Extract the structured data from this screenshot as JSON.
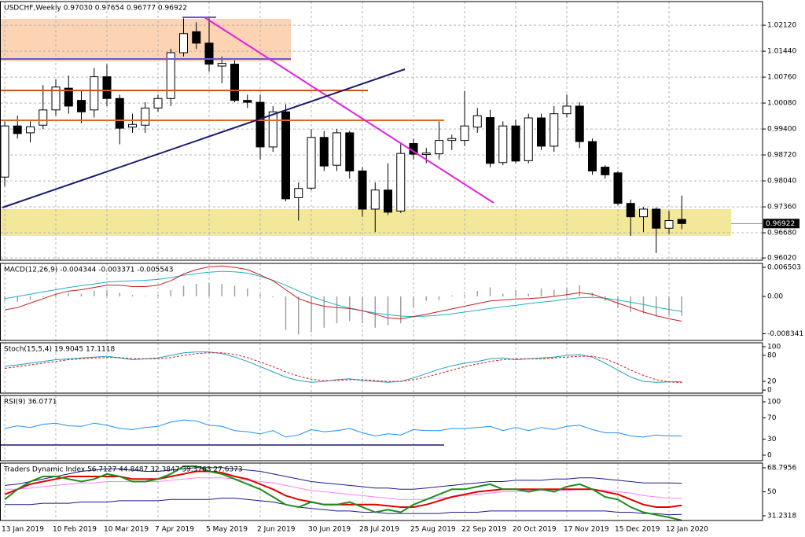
{
  "chart_data": [
    {
      "type": "candlestick",
      "title": "USDCHF,Weekly  0.97030 0.97654 0.96777 0.96922",
      "price_label": "0.96922",
      "up_color": "#ffffff",
      "down_color": "#000000",
      "grid": true,
      "categories": [
        "13 Jan 2019",
        null,
        null,
        null,
        "10 Feb 2019",
        null,
        null,
        null,
        "10 Mar 2019",
        null,
        null,
        null,
        "7 Apr 2019",
        null,
        null,
        null,
        "5 May 2019",
        null,
        null,
        null,
        "2 Jun 2019",
        null,
        null,
        null,
        "30 Jun 2019",
        null,
        null,
        null,
        "28 Jul 2019",
        null,
        null,
        null,
        "25 Aug 2019",
        null,
        null,
        null,
        "22 Sep 2019",
        null,
        null,
        null,
        "20 Oct 2019",
        null,
        null,
        null,
        "17 Nov 2019",
        null,
        null,
        null,
        "15 Dec 2019",
        null,
        null,
        null,
        "12 Jan 2020",
        null
      ],
      "open": [
        0.9814,
        0.9948,
        0.993,
        0.995,
        0.999,
        1.0047,
        1.0015,
        0.999,
        1.0077,
        1.002,
        0.9945,
        0.995,
        0.9995,
        1.002,
        1.014,
        1.0195,
        1.0165,
        1.0105,
        1.011,
        1.0015,
        1.001,
        0.9893,
        0.9985,
        0.976,
        0.9785,
        0.9918,
        0.9845,
        0.993,
        0.983,
        0.973,
        0.978,
        0.9725,
        0.9902,
        0.9873,
        0.9875,
        0.991,
        0.991,
        0.9945,
        0.997,
        0.9852,
        0.9948,
        0.9857,
        0.9969,
        0.9895,
        0.998,
        1.0,
        0.9907,
        0.984,
        0.9825,
        0.9745,
        0.971,
        0.973,
        0.968,
        0.9703
      ],
      "high": [
        0.996,
        0.9975,
        0.996,
        1.0055,
        1.007,
        1.008,
        1.004,
        1.01,
        1.011,
        1.003,
        0.998,
        1.001,
        1.003,
        1.015,
        1.023,
        1.022,
        1.0235,
        1.013,
        1.012,
        1.003,
        1.003,
        1.0,
        1.0005,
        0.98,
        0.994,
        0.9935,
        0.994,
        0.9935,
        0.984,
        0.98,
        0.985,
        0.99,
        0.9915,
        0.989,
        0.996,
        0.9925,
        1.004,
        0.9995,
        0.999,
        0.996,
        0.9965,
        0.998,
        0.998,
        1.0,
        1.003,
        1.001,
        0.9915,
        0.9845,
        0.983,
        0.9755,
        0.9735,
        0.9735,
        0.9725,
        0.97654
      ],
      "low": [
        0.979,
        0.9915,
        0.9905,
        0.994,
        0.9975,
        0.998,
        0.9955,
        0.997,
        1.0,
        0.99,
        0.993,
        0.993,
        0.9985,
        1.0,
        1.013,
        1.015,
        1.009,
        1.006,
        1.001,
        0.9995,
        0.986,
        0.988,
        0.975,
        0.97,
        0.978,
        0.983,
        0.983,
        0.981,
        0.971,
        0.967,
        0.9715,
        0.972,
        0.986,
        0.985,
        0.986,
        0.9885,
        0.9895,
        0.993,
        0.984,
        0.9845,
        0.985,
        0.985,
        0.9885,
        0.988,
        0.997,
        0.989,
        0.982,
        0.981,
        0.974,
        0.966,
        0.967,
        0.9615,
        0.9665,
        0.96777
      ],
      "close": [
        0.9948,
        0.9928,
        0.9946,
        0.999,
        1.005,
        1.0,
        0.9985,
        1.0077,
        1.002,
        0.9942,
        0.9952,
        0.9995,
        1.002,
        1.014,
        1.019,
        1.0165,
        1.011,
        1.0112,
        1.0015,
        1.001,
        0.9893,
        0.9985,
        0.9757,
        0.9784,
        0.9918,
        0.9843,
        0.993,
        0.983,
        0.973,
        0.978,
        0.9722,
        0.9876,
        0.9874,
        0.9877,
        0.991,
        0.9915,
        0.9948,
        0.9975,
        0.985,
        0.9948,
        0.9856,
        0.9969,
        0.9895,
        0.998,
        1.0,
        0.9907,
        0.983,
        0.982,
        0.9745,
        0.971,
        0.973,
        0.968,
        0.97,
        0.96922
      ],
      "ylim": [
        0.9596,
        1.0274
      ],
      "yticks": [
        {
          "value": 1.0212,
          "label": "1.02120"
        },
        {
          "value": 1.0144,
          "label": "1.01440"
        },
        {
          "value": 1.0076,
          "label": "1.00760"
        },
        {
          "value": 1.0008,
          "label": "1.00080"
        },
        {
          "value": 0.994,
          "label": "0.99400"
        },
        {
          "value": 0.9872,
          "label": "0.98720"
        },
        {
          "value": 0.9804,
          "label": "0.98040"
        },
        {
          "value": 0.9736,
          "label": "0.97360"
        },
        {
          "value": 0.9668,
          "label": "0.96680"
        },
        {
          "value": 0.9602,
          "label": "0.96020"
        }
      ]
    },
    {
      "type": "macd",
      "title": "MACD(12,26,9) -0.004344 -0.003371 -0.005543",
      "grid": false,
      "ylim": [
        -0.00984,
        0.00738
      ],
      "yticks": [
        0.006503,
        {
          "value": 0,
          "label": "0.00"
        },
        -0.008341
      ],
      "series": [
        {
          "style": "histogram",
          "color": "#a0a0a0",
          "values": [
            -0.001,
            -0.0012,
            -0.0008,
            -0.0002,
            0.0005,
            0.0008,
            0.0006,
            0.0012,
            0.0014,
            0.0008,
            0.0003,
            0.0001,
            0.0004,
            0.0014,
            0.0024,
            0.0028,
            0.003,
            0.0028,
            0.0024,
            0.0018,
            0.0005,
            -0.0002,
            -0.0075,
            -0.0085,
            -0.008,
            -0.007,
            -0.006,
            -0.0055,
            -0.006,
            -0.007,
            -0.0065,
            -0.006,
            -0.0025,
            -0.001,
            -0.0008,
            0.0002,
            0.0004,
            0.0012,
            0.002,
            0.0006,
            0.0014,
            0.0006,
            0.0018,
            0.0015,
            0.002,
            0.0025,
            0.0008,
            -0.001,
            -0.0025,
            -0.0035,
            -0.0038,
            -0.0045,
            -0.0042,
            -0.004344
          ]
        },
        {
          "style": "line",
          "color": "#1fb0c8",
          "values": [
            -0.0005,
            0,
            0.0005,
            0.001,
            0.0015,
            0.002,
            0.0024,
            0.0028,
            0.0032,
            0.0034,
            0.0035,
            0.0036,
            0.0038,
            0.0042,
            0.0047,
            0.0051,
            0.0054,
            0.0056,
            0.0055,
            0.0052,
            0.0045,
            0.0036,
            0.0025,
            0.0012,
            0,
            -0.001,
            -0.0019,
            -0.0026,
            -0.0032,
            -0.0037,
            -0.0041,
            -0.0044,
            -0.0045,
            -0.0044,
            -0.0042,
            -0.0039,
            -0.0035,
            -0.0031,
            -0.0027,
            -0.0023,
            -0.002,
            -0.0016,
            -0.0013,
            -0.001,
            -0.0006,
            -0.0003,
            -0.0002,
            -0.0004,
            -0.0008,
            -0.0013,
            -0.0018,
            -0.0024,
            -0.0029,
            -0.003371
          ]
        },
        {
          "style": "line",
          "color": "#c81e1e",
          "values": [
            -0.003,
            -0.0025,
            -0.0015,
            -0.0005,
            0.0005,
            0.0012,
            0.0015,
            0.002,
            0.0025,
            0.0025,
            0.0022,
            0.0022,
            0.0025,
            0.0035,
            0.005,
            0.006,
            0.0066,
            0.0068,
            0.0065,
            0.006,
            0.0048,
            0.0035,
            0.0015,
            -0.0005,
            -0.0015,
            -0.0022,
            -0.0025,
            -0.0027,
            -0.0032,
            -0.004,
            -0.0048,
            -0.005,
            -0.0045,
            -0.004,
            -0.0034,
            -0.0028,
            -0.0022,
            -0.0016,
            -0.001,
            -0.0008,
            -0.0006,
            -0.0005,
            -0.0003,
            0,
            0.0004,
            0.0008,
            0.0005,
            -0.0005,
            -0.0015,
            -0.0025,
            -0.0035,
            -0.0043,
            -0.005,
            -0.005543
          ]
        }
      ]
    },
    {
      "type": "line",
      "title": "Stoch(15,5,4) 19.9045 17.1118",
      "grid": false,
      "ylim": [
        -7,
        109
      ],
      "yticks": [
        100,
        80,
        20,
        0
      ],
      "series": [
        {
          "style": "line",
          "color": "#1fa0c0",
          "values": [
            55,
            58,
            62,
            66,
            70,
            72,
            74,
            76,
            78,
            74,
            70,
            72,
            74,
            80,
            86,
            88,
            88,
            84,
            76,
            66,
            54,
            42,
            30,
            22,
            18,
            20,
            24,
            26,
            22,
            20,
            18,
            20,
            28,
            38,
            48,
            56,
            62,
            66,
            72,
            74,
            70,
            72,
            74,
            76,
            80,
            82,
            76,
            62,
            46,
            30,
            20,
            18,
            19,
            19.9045
          ]
        },
        {
          "style": "dashed",
          "color": "#d02020",
          "values": [
            50,
            54,
            58,
            62,
            66,
            70,
            72,
            74,
            75,
            75,
            73,
            72,
            72,
            75,
            80,
            84,
            86,
            86,
            82,
            75,
            65,
            54,
            42,
            32,
            25,
            22,
            22,
            24,
            24,
            22,
            20,
            20,
            24,
            30,
            38,
            46,
            54,
            60,
            66,
            70,
            72,
            72,
            72,
            74,
            76,
            78,
            78,
            72,
            60,
            46,
            34,
            24,
            19,
            17.1118
          ]
        }
      ]
    },
    {
      "type": "line",
      "title": "RSI(9) 36.0771",
      "grid": false,
      "ylim": [
        -10.3,
        111.8
      ],
      "yticks": [
        100,
        70,
        30,
        0
      ],
      "series": [
        {
          "style": "line",
          "color": "#1e90ff",
          "values": [
            50,
            55,
            52,
            58,
            60,
            55,
            54,
            60,
            56,
            50,
            48,
            52,
            54,
            62,
            66,
            64,
            56,
            54,
            46,
            44,
            40,
            46,
            34,
            38,
            48,
            44,
            46,
            50,
            42,
            36,
            40,
            38,
            48,
            46,
            46,
            50,
            50,
            52,
            54,
            46,
            52,
            46,
            52,
            48,
            54,
            56,
            48,
            42,
            42,
            36,
            34,
            38,
            36,
            36.0771
          ]
        }
      ]
    },
    {
      "type": "line",
      "title": "Traders Dynamic Index 56.7127 44.8487 32.3847 39.3763 27.6373",
      "grid": false,
      "ylim": [
        27.54,
        72.49
      ],
      "yticks": [
        68.7956,
        50,
        31.2318
      ],
      "series": [
        {
          "style": "line",
          "color": "#1a1a8c",
          "values": [
            55,
            56,
            58,
            60,
            62,
            64,
            66,
            67,
            68,
            68,
            67,
            66,
            66,
            67,
            68,
            69,
            69,
            69,
            68,
            67,
            66,
            64,
            62,
            60,
            58,
            57,
            56,
            55,
            54,
            53,
            53,
            52,
            52,
            53,
            54,
            55,
            56,
            57,
            58,
            58,
            59,
            59,
            59,
            60,
            60,
            61,
            61,
            60,
            59,
            58,
            57,
            57,
            57,
            56.7127
          ]
        },
        {
          "style": "line",
          "color": "#ff80ff",
          "values": [
            52,
            52,
            53,
            54,
            55,
            56,
            57,
            57,
            58,
            58,
            58,
            58,
            58,
            59,
            60,
            61,
            61,
            61,
            60,
            59,
            58,
            57,
            55,
            53,
            51,
            50,
            49,
            48,
            47,
            46,
            45,
            44,
            44,
            44,
            45,
            46,
            47,
            48,
            49,
            50,
            50,
            51,
            51,
            51,
            51,
            52,
            52,
            51,
            50,
            49,
            47,
            46,
            45,
            44.8487
          ]
        },
        {
          "style": "line",
          "color": "#1a1a8c",
          "values": [
            40,
            40,
            40,
            41,
            41,
            41,
            42,
            42,
            42,
            43,
            43,
            43,
            43,
            44,
            44,
            44,
            44,
            45,
            45,
            44,
            43,
            42,
            40,
            38,
            37,
            36,
            35,
            35,
            34,
            34,
            33,
            33,
            33,
            33,
            33,
            34,
            34,
            34,
            35,
            35,
            35,
            35,
            35,
            35,
            35,
            35,
            35,
            35,
            34,
            34,
            33,
            33,
            32,
            32.3847
          ]
        },
        {
          "style": "thick",
          "color": "#e00000",
          "values": [
            48,
            52,
            56,
            58,
            60,
            62,
            62,
            62,
            62,
            62,
            60,
            60,
            60,
            62,
            64,
            66,
            66,
            65,
            62,
            60,
            56,
            52,
            47,
            44,
            42,
            40,
            40,
            40,
            40,
            40,
            39,
            38,
            38,
            40,
            43,
            46,
            48,
            50,
            51,
            52,
            52,
            52,
            52,
            52,
            52,
            52,
            52,
            50,
            48,
            44,
            40,
            38,
            38,
            39.3763
          ]
        },
        {
          "style": "thick",
          "color": "#1e8c1e",
          "values": [
            44,
            52,
            58,
            62,
            62,
            60,
            58,
            60,
            64,
            62,
            58,
            58,
            60,
            64,
            70,
            70,
            66,
            64,
            60,
            56,
            52,
            46,
            40,
            38,
            42,
            40,
            40,
            42,
            38,
            34,
            36,
            34,
            40,
            44,
            48,
            52,
            52,
            54,
            56,
            52,
            52,
            50,
            52,
            50,
            54,
            56,
            52,
            46,
            44,
            38,
            34,
            32,
            30,
            27.6373
          ]
        }
      ]
    }
  ]
}
